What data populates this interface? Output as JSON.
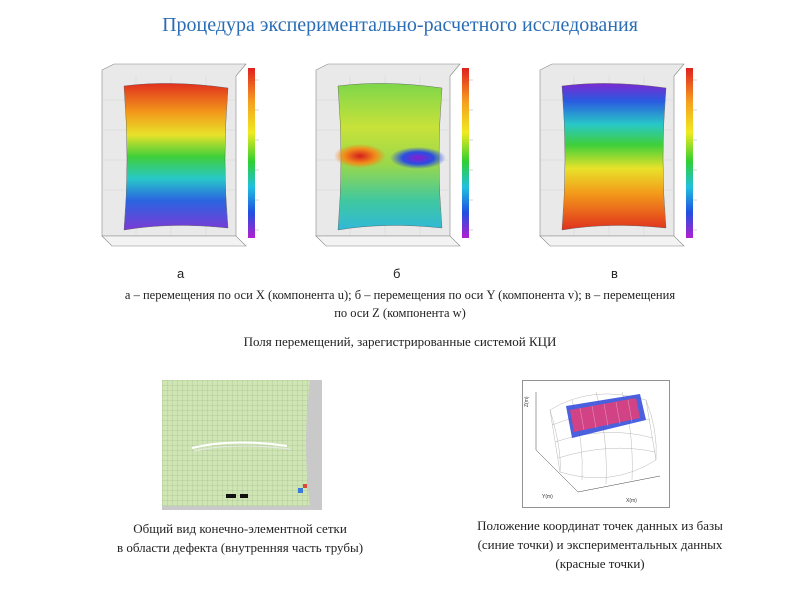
{
  "title": "Процедура экспериментально-расчетного исследования",
  "panel_letters": [
    "а",
    "б",
    "в"
  ],
  "caption_line1": "а – перемещения по оси X (компонента u); б – перемещения по оси Y (компонента v); в – перемещения",
  "caption_line2": "по оси Z (компонента w)",
  "subtitle": "Поля перемещений, зарегистрированные системой КЦИ",
  "mesh_caption": [
    "Общий вид конечно-элементной сетки",
    "в области дефекта (внутренняя часть трубы)"
  ],
  "plot_caption": [
    "Положение координат точек данных из базы",
    "(синие точки) и экспериментальных данных",
    "(красные точки)"
  ],
  "plot_axis_labels": {
    "x": "X(m)",
    "y": "Y(m)",
    "z": "Z(m)"
  }
}
